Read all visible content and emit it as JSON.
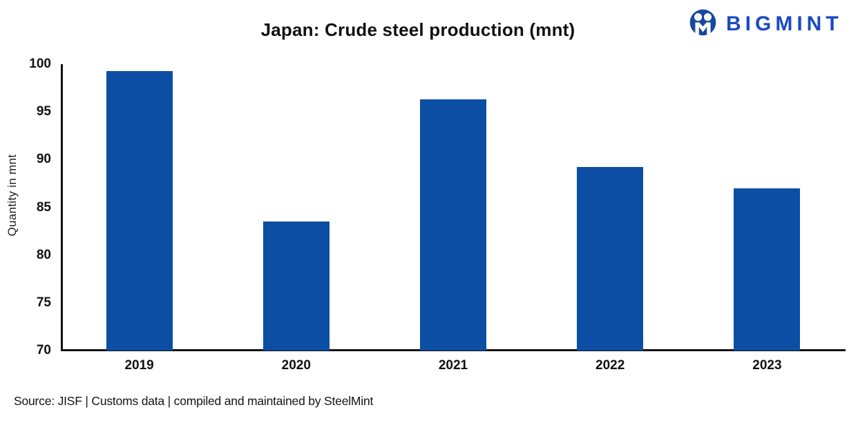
{
  "logo": {
    "text": "BIGMINT",
    "icon": "bigmint-people-icon",
    "circle_color": "#17479E",
    "text_color": "#1B4AC2"
  },
  "source": {
    "text": "Source: JISF | Customs data | compiled and maintained by SteelMint"
  },
  "chart_data": {
    "type": "bar",
    "title": "Japan: Crude steel production (mnt)",
    "categories": [
      "2019",
      "2020",
      "2021",
      "2022",
      "2023"
    ],
    "values": [
      99.3,
      83.5,
      96.3,
      89.2,
      87.0
    ],
    "xlabel": "",
    "ylabel": "Quantity in mnt",
    "ylim": [
      70,
      100
    ],
    "yticks": [
      100,
      95,
      90,
      85,
      80,
      75,
      70
    ],
    "bar_color": "#0B4EA3",
    "axis_color": "#111111",
    "grid": false,
    "legend": false
  }
}
